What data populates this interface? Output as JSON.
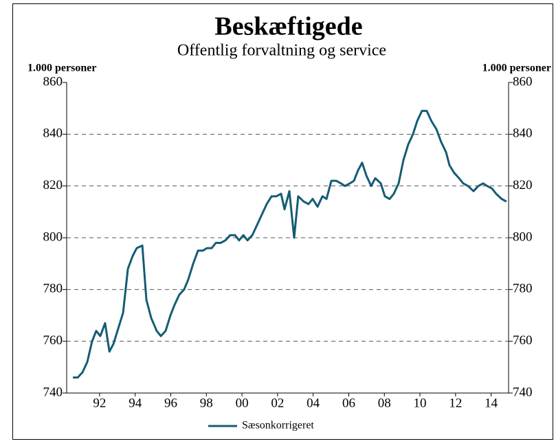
{
  "chart_data": {
    "type": "line",
    "title": "Beskæftigede",
    "subtitle": "Offentlig forvaltning og service",
    "y_label": "1.000 personer",
    "y2_label": "1.000 personer",
    "x": [
      1991.0,
      1991.27,
      1991.54,
      1991.81,
      1992.08,
      1992.31,
      1992.54,
      1992.81,
      1993.05,
      1993.28,
      1993.55,
      1993.82,
      1994.09,
      1994.36,
      1994.59,
      1994.9,
      1995.13,
      1995.4,
      1995.71,
      1995.94,
      1996.21,
      1996.48,
      1996.71,
      1996.98,
      1997.25,
      1997.49,
      1997.76,
      1998.03,
      1998.3,
      1998.53,
      1998.8,
      1999.03,
      1999.3,
      1999.57,
      1999.84,
      2000.11,
      2000.34,
      2000.58,
      2000.81,
      2001.08,
      2001.35,
      2001.62,
      2001.89,
      2002.16,
      2002.43,
      2002.7,
      2002.89,
      2003.16,
      2003.43,
      2003.66,
      2003.97,
      2004.24,
      2004.47,
      2004.75,
      2005.02,
      2005.25,
      2005.52,
      2005.79,
      2006.06,
      2006.29,
      2006.56,
      2006.79,
      2007.02,
      2007.25,
      2007.49,
      2007.76,
      2007.99,
      2008.3,
      2008.53,
      2008.8,
      2009.03,
      2009.3,
      2009.57,
      2009.84,
      2010.11,
      2010.34,
      2010.61,
      2010.88,
      2011.15,
      2011.42,
      2011.69,
      2011.97,
      2012.16,
      2012.43,
      2012.7,
      2012.93,
      2013.2,
      2013.51,
      2013.78,
      2014.05,
      2014.28,
      2014.55,
      2014.78,
      2015.09,
      2015.36
    ],
    "series": [
      {
        "name": "Sæsonkorrigeret",
        "color": "#145c74",
        "values": [
          746,
          746,
          748,
          752,
          760,
          764,
          762,
          767,
          756,
          759,
          765,
          771,
          788,
          793,
          796,
          797,
          776,
          769,
          764,
          762,
          764,
          770,
          774,
          778,
          780,
          784,
          790,
          795,
          795,
          796,
          796,
          798,
          798,
          799,
          801,
          801,
          799,
          801,
          799,
          801,
          805,
          809,
          813,
          816,
          816,
          817,
          811,
          818,
          800,
          816,
          814,
          813,
          815,
          812,
          816,
          815,
          822,
          822,
          821,
          820,
          821,
          822,
          826,
          829,
          824,
          820,
          823,
          821,
          816,
          815,
          817,
          821,
          830,
          836,
          840,
          845,
          849,
          849,
          845,
          842,
          837,
          833,
          828,
          825,
          823,
          821,
          820,
          818,
          820,
          821,
          820,
          819,
          817,
          815,
          814
        ]
      }
    ],
    "xlim": [
      1990.65,
      2015.48
    ],
    "xticks": [
      {
        "value": 1992.5,
        "label": "92"
      },
      {
        "value": 1994.5,
        "label": "94"
      },
      {
        "value": 1996.5,
        "label": "96"
      },
      {
        "value": 1998.5,
        "label": "98"
      },
      {
        "value": 2000.5,
        "label": "00"
      },
      {
        "value": 2002.5,
        "label": "02"
      },
      {
        "value": 2004.5,
        "label": "04"
      },
      {
        "value": 2006.5,
        "label": "06"
      },
      {
        "value": 2008.5,
        "label": "08"
      },
      {
        "value": 2010.5,
        "label": "10"
      },
      {
        "value": 2012.5,
        "label": "12"
      },
      {
        "value": 2014.5,
        "label": "14"
      }
    ],
    "ylim": [
      740,
      860
    ],
    "yticks": [
      740,
      760,
      780,
      800,
      820,
      840,
      860
    ],
    "y2lim": [
      740,
      860
    ],
    "y2ticks": [
      740,
      760,
      780,
      800,
      820,
      840,
      860
    ],
    "grid": true
  }
}
